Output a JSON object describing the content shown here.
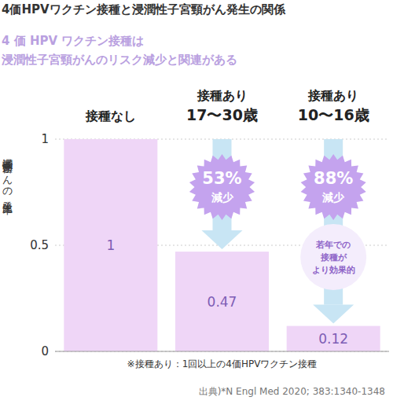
{
  "chart_data": {
    "type": "bar",
    "title": "4価HPVワクチン接種と浸潤性子宮頸がん発生の関係",
    "subtitle": "4 価 HPV ワクチン接種は\n浸潤性子宮頸がんのリスク減少と関連がある",
    "y_label": "浸潤性子宮頸がんの発生比率",
    "categories": [
      "接種なし",
      "接種あり\n17〜30歳",
      "接種あり\n10〜16歳"
    ],
    "values": [
      1,
      0.47,
      0.12
    ],
    "color": "#efd6f7",
    "ylim": [
      0,
      1
    ],
    "yticks": [
      0,
      0.5,
      1
    ],
    "grid": true,
    "data_labels": true,
    "annotations": [
      {
        "category": "接種あり\n17〜30歳",
        "text": "53%\n減少"
      },
      {
        "category": "接種あり\n10〜16歳",
        "text": "88%\n減少"
      },
      {
        "category": "接種あり\n10〜16歳",
        "text": "若年での\n接種が\nより効果的"
      }
    ],
    "footnote": "※接種あり：1回以上の4価HPVワクチン接種",
    "source": "出典)*N Engl Med 2020; 383:1340-1348"
  }
}
